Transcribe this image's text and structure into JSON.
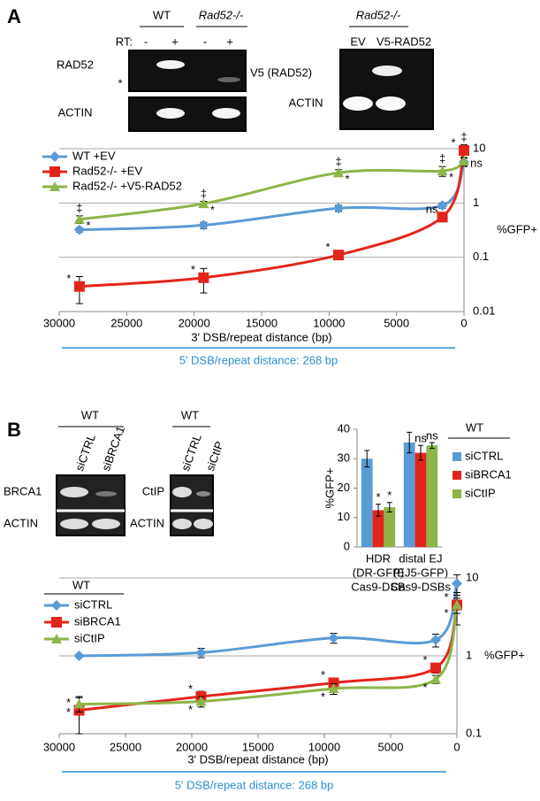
{
  "panel_a": {
    "label": "A",
    "blot_rt": {
      "groups": [
        "WT",
        "Rad52-/-"
      ],
      "rt_label": "RT:",
      "lanes": [
        "-",
        "+",
        "-",
        "+"
      ],
      "rows": [
        "RAD52",
        "ACTIN"
      ],
      "star": "*"
    },
    "blot_v5": {
      "group": "Rad52-/-",
      "lanes": [
        "EV",
        "V5-RAD52"
      ],
      "rows": [
        "V5 (RAD52)",
        "ACTIN"
      ]
    }
  },
  "panel_b": {
    "label": "B",
    "blot_brca1": {
      "group": "WT",
      "lanes": [
        "siCTRL",
        "siBRCA1"
      ],
      "rows": [
        "BRCA1",
        "ACTIN"
      ]
    },
    "blot_ctip": {
      "group": "WT",
      "lanes": [
        "siCTRL",
        "siCtIP"
      ],
      "rows": [
        "CtIP",
        "ACTIN"
      ]
    }
  },
  "chart_data": [
    {
      "type": "line",
      "x_label": "3' DSB/repeat distance (bp)",
      "y_label": "%GFP+",
      "subtitle": "5' DSB/repeat distance: 268 bp",
      "x": [
        28500,
        19300,
        9300,
        1600,
        0
      ],
      "xlim": [
        30000,
        0
      ],
      "xticks": [
        30000,
        25000,
        20000,
        15000,
        10000,
        5000,
        0
      ],
      "ylim": [
        0.01,
        10
      ],
      "yticks": [
        10,
        1,
        0.1,
        0.01
      ],
      "log_y": true,
      "grid": true,
      "series": [
        {
          "name": "WT +EV",
          "color": "#5b9bd5",
          "values": [
            0.32,
            0.39,
            0.8,
            0.9,
            5.7
          ],
          "errors": [
            0.03,
            0.05,
            0.1,
            0.1,
            1
          ],
          "point_labels": [
            null,
            null,
            null,
            null,
            "ns"
          ],
          "point_marks": [
            null,
            null,
            null,
            null,
            null
          ]
        },
        {
          "name": "Rad52-/- +EV",
          "color": "#e3241b",
          "values": [
            0.029,
            0.042,
            0.11,
            0.55,
            9.3
          ],
          "errors": [
            0.015,
            0.02,
            0.015,
            0.1,
            2.5
          ],
          "point_labels": [
            "*",
            "*",
            "*",
            "ns",
            "*"
          ],
          "point_marks": [
            null,
            null,
            null,
            null,
            "‡"
          ]
        },
        {
          "name": "Rad52-/- +V5-RAD52",
          "color": "#8db549",
          "values": [
            0.5,
            0.97,
            3.6,
            3.9,
            5.9
          ],
          "errors": [
            0.08,
            0.1,
            0.5,
            0.8,
            1
          ],
          "point_labels": [
            "*",
            "*",
            "*",
            "*",
            null
          ],
          "point_marks": [
            "‡",
            "‡",
            "‡",
            "‡",
            null
          ]
        }
      ]
    },
    {
      "type": "bar",
      "y_label": "%GFP+",
      "legend_title": "WT",
      "categories": [
        [
          "HDR",
          "(DR-GFP)",
          "Cas9-DSB"
        ],
        [
          "distal EJ",
          "(EJ5-GFP)",
          "Cas9-DSBs"
        ]
      ],
      "ylim": [
        0,
        40
      ],
      "yticks": [
        0,
        10,
        20,
        30,
        40
      ],
      "grid": false,
      "series": [
        {
          "name": "siCTRL",
          "color": "#5b9bd5",
          "values": [
            30,
            35.5
          ],
          "errors": [
            2.8,
            3.5
          ],
          "point_labels": [
            null,
            null
          ]
        },
        {
          "name": "siBRCA1",
          "color": "#e3241b",
          "values": [
            12.5,
            32
          ],
          "errors": [
            2,
            2.5
          ],
          "point_labels": [
            "*",
            "ns"
          ]
        },
        {
          "name": "siCtIP",
          "color": "#8db549",
          "values": [
            13.5,
            34.5
          ],
          "errors": [
            1.6,
            1
          ],
          "point_labels": [
            "*",
            "ns"
          ]
        }
      ]
    },
    {
      "type": "line",
      "x_label": "3' DSB/repeat distance (bp)",
      "y_label": "%GFP+",
      "subtitle": "5' DSB/repeat distance: 268 bp",
      "legend_title": "WT",
      "x": [
        28500,
        19300,
        9300,
        1600,
        0
      ],
      "xlim": [
        30000,
        0
      ],
      "xticks": [
        30000,
        25000,
        20000,
        15000,
        10000,
        5000,
        0
      ],
      "ylim": [
        0.1,
        10
      ],
      "yticks": [
        10,
        1,
        0.1
      ],
      "log_y": true,
      "grid": true,
      "series": [
        {
          "name": "siCTRL",
          "color": "#5b9bd5",
          "values": [
            1,
            1.1,
            1.7,
            1.6,
            8.5
          ],
          "errors": [
            0.05,
            0.15,
            0.25,
            0.3,
            2.5
          ],
          "point_labels": [
            null,
            null,
            null,
            null,
            null
          ],
          "point_marks": [
            null,
            null,
            null,
            null,
            null
          ]
        },
        {
          "name": "siBRCA1",
          "color": "#e3241b",
          "values": [
            0.2,
            0.3,
            0.45,
            0.7,
            4.5
          ],
          "errors": [
            0.1,
            0.05,
            0.07,
            0.1,
            2
          ],
          "point_labels": [
            "*",
            "*",
            "*",
            "*",
            "*"
          ],
          "point_marks": [
            null,
            null,
            null,
            null,
            null
          ]
        },
        {
          "name": "siCtIP",
          "color": "#8db549",
          "values": [
            0.24,
            0.26,
            0.38,
            0.5,
            4.5
          ],
          "errors": [
            0.05,
            0.04,
            0.06,
            0.06,
            1
          ],
          "point_labels": [
            "*",
            "*",
            "*",
            "*",
            "*"
          ],
          "point_marks": [
            null,
            null,
            null,
            null,
            null
          ]
        }
      ]
    }
  ]
}
